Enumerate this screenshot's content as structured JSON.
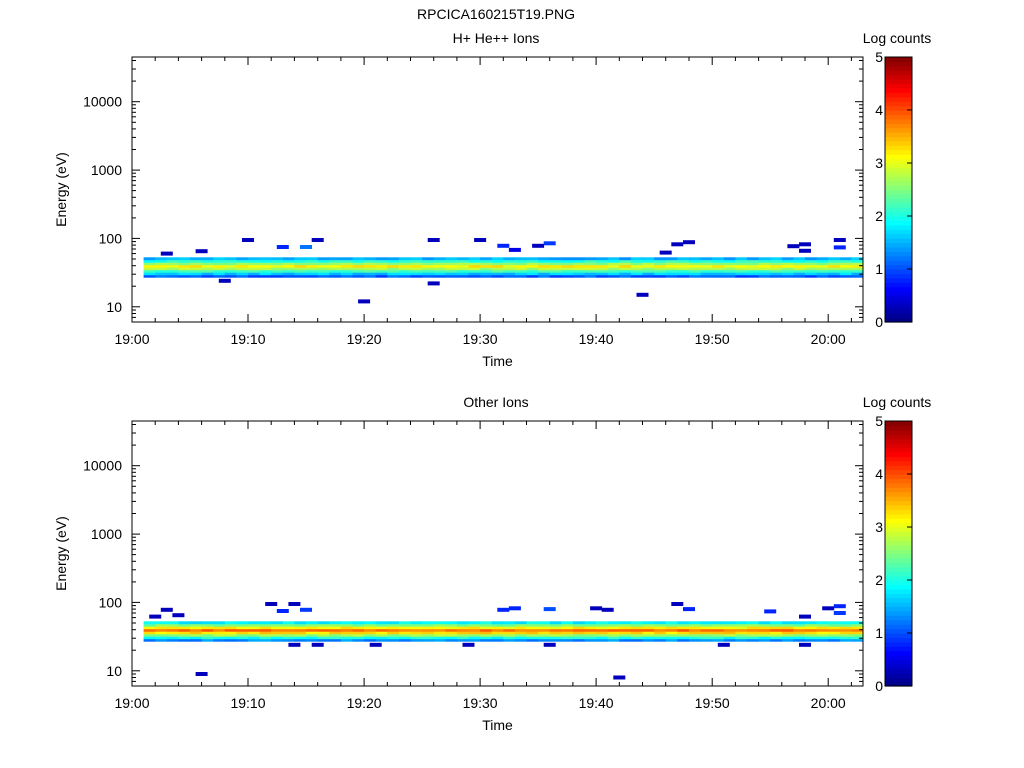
{
  "figure": {
    "title": "RPCICA160215T19.PNG"
  },
  "chart_data": [
    {
      "type": "heatmap",
      "title": "H+ He++ Ions",
      "xlabel": "Time",
      "ylabel": "Energy (eV)",
      "y_scale": "log",
      "ylim": [
        6,
        45000
      ],
      "xlim": [
        "19:00",
        "20:03"
      ],
      "x_ticks": [
        "19:00",
        "19:10",
        "19:20",
        "19:30",
        "19:40",
        "19:50",
        "20:00"
      ],
      "y_ticks": [
        "10",
        "100",
        "1000",
        "10000"
      ],
      "colorbar": {
        "label": "Log counts",
        "range": [
          0,
          5
        ],
        "ticks": [
          "0",
          "1",
          "2",
          "3",
          "4",
          "5"
        ],
        "colormap": "jet"
      },
      "band": {
        "energy_min_eV": 27,
        "energy_max_eV": 53,
        "peak_log_counts": 3.2
      },
      "sparse_points": [
        {
          "time": "19:03",
          "energy_eV": 60,
          "log_counts": 0.3
        },
        {
          "time": "19:06",
          "energy_eV": 65,
          "log_counts": 0.3
        },
        {
          "time": "19:08",
          "energy_eV": 24,
          "log_counts": 0.3
        },
        {
          "time": "19:10",
          "energy_eV": 95,
          "log_counts": 0.3
        },
        {
          "time": "19:13",
          "energy_eV": 75,
          "log_counts": 0.8
        },
        {
          "time": "19:15",
          "energy_eV": 75,
          "log_counts": 1.2
        },
        {
          "time": "19:16",
          "energy_eV": 95,
          "log_counts": 0.3
        },
        {
          "time": "19:20",
          "energy_eV": 12,
          "log_counts": 0.3
        },
        {
          "time": "19:26",
          "energy_eV": 95,
          "log_counts": 0.3
        },
        {
          "time": "19:26",
          "energy_eV": 22,
          "log_counts": 0.3
        },
        {
          "time": "19:30",
          "energy_eV": 95,
          "log_counts": 0.3
        },
        {
          "time": "19:32",
          "energy_eV": 78,
          "log_counts": 0.8
        },
        {
          "time": "19:33",
          "energy_eV": 68,
          "log_counts": 0.5
        },
        {
          "time": "19:35",
          "energy_eV": 78,
          "log_counts": 0.3
        },
        {
          "time": "19:36",
          "energy_eV": 85,
          "log_counts": 0.9
        },
        {
          "time": "19:44",
          "energy_eV": 15,
          "log_counts": 0.3
        },
        {
          "time": "19:46",
          "energy_eV": 62,
          "log_counts": 0.3
        },
        {
          "time": "19:47",
          "energy_eV": 82,
          "log_counts": 0.3
        },
        {
          "time": "19:48",
          "energy_eV": 88,
          "log_counts": 0.3
        },
        {
          "time": "19:57",
          "energy_eV": 77,
          "log_counts": 0.3
        },
        {
          "time": "19:58",
          "energy_eV": 82,
          "log_counts": 0.3
        },
        {
          "time": "19:58",
          "energy_eV": 66,
          "log_counts": 0.3
        },
        {
          "time": "20:01",
          "energy_eV": 95,
          "log_counts": 0.3
        },
        {
          "time": "20:01",
          "energy_eV": 74,
          "log_counts": 0.8
        }
      ]
    },
    {
      "type": "heatmap",
      "title": "Other Ions",
      "xlabel": "Time",
      "ylabel": "Energy (eV)",
      "y_scale": "log",
      "ylim": [
        6,
        45000
      ],
      "xlim": [
        "19:00",
        "20:03"
      ],
      "x_ticks": [
        "19:00",
        "19:10",
        "19:20",
        "19:30",
        "19:40",
        "19:50",
        "20:00"
      ],
      "y_ticks": [
        "10",
        "100",
        "1000",
        "10000"
      ],
      "colorbar": {
        "label": "Log counts",
        "range": [
          0,
          5
        ],
        "ticks": [
          "0",
          "1",
          "2",
          "3",
          "4",
          "5"
        ],
        "colormap": "jet"
      },
      "band": {
        "energy_min_eV": 27,
        "energy_max_eV": 53,
        "peak_log_counts": 3.9
      },
      "sparse_points": [
        {
          "time": "19:02",
          "energy_eV": 62,
          "log_counts": 0.3
        },
        {
          "time": "19:03",
          "energy_eV": 78,
          "log_counts": 0.3
        },
        {
          "time": "19:04",
          "energy_eV": 65,
          "log_counts": 0.3
        },
        {
          "time": "19:06",
          "energy_eV": 9,
          "log_counts": 0.3
        },
        {
          "time": "19:12",
          "energy_eV": 95,
          "log_counts": 0.3
        },
        {
          "time": "19:13",
          "energy_eV": 75,
          "log_counts": 0.8
        },
        {
          "time": "19:14",
          "energy_eV": 95,
          "log_counts": 0.3
        },
        {
          "time": "19:15",
          "energy_eV": 78,
          "log_counts": 0.9
        },
        {
          "time": "19:14",
          "energy_eV": 24,
          "log_counts": 0.3
        },
        {
          "time": "19:16",
          "energy_eV": 24,
          "log_counts": 0.3
        },
        {
          "time": "19:21",
          "energy_eV": 24,
          "log_counts": 0.3
        },
        {
          "time": "19:29",
          "energy_eV": 24,
          "log_counts": 0.3
        },
        {
          "time": "19:32",
          "energy_eV": 78,
          "log_counts": 0.8
        },
        {
          "time": "19:33",
          "energy_eV": 82,
          "log_counts": 0.8
        },
        {
          "time": "19:36",
          "energy_eV": 80,
          "log_counts": 1.0
        },
        {
          "time": "19:36",
          "energy_eV": 24,
          "log_counts": 0.3
        },
        {
          "time": "19:40",
          "energy_eV": 82,
          "log_counts": 0.3
        },
        {
          "time": "19:41",
          "energy_eV": 78,
          "log_counts": 0.3
        },
        {
          "time": "19:42",
          "energy_eV": 8,
          "log_counts": 0.3
        },
        {
          "time": "19:47",
          "energy_eV": 95,
          "log_counts": 0.3
        },
        {
          "time": "19:48",
          "energy_eV": 80,
          "log_counts": 0.8
        },
        {
          "time": "19:51",
          "energy_eV": 24,
          "log_counts": 0.3
        },
        {
          "time": "19:55",
          "energy_eV": 74,
          "log_counts": 0.8
        },
        {
          "time": "19:58",
          "energy_eV": 62,
          "log_counts": 0.3
        },
        {
          "time": "19:58",
          "energy_eV": 24,
          "log_counts": 0.3
        },
        {
          "time": "20:00",
          "energy_eV": 82,
          "log_counts": 0.3
        },
        {
          "time": "20:01",
          "energy_eV": 88,
          "log_counts": 0.8
        },
        {
          "time": "20:01",
          "energy_eV": 70,
          "log_counts": 0.9
        }
      ]
    }
  ]
}
